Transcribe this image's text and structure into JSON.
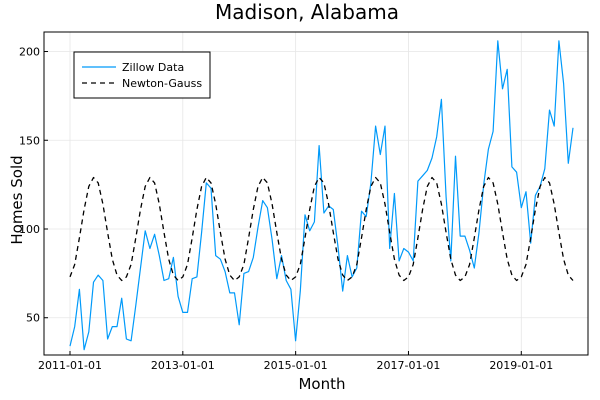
{
  "chart_data": {
    "type": "line",
    "title": "Madison, Alabama",
    "xlabel": "Month",
    "ylabel": "Homes Sold",
    "x_ticks": [
      "2011-01-01",
      "2013-01-01",
      "2015-01-01",
      "2017-01-01",
      "2019-01-01"
    ],
    "y_ticks": [
      50,
      100,
      150,
      200
    ],
    "xlim": [
      "2011-01-01",
      "2019-12-01"
    ],
    "ylim": [
      29,
      211
    ],
    "grid": true,
    "legend_position": "top-left",
    "colors": {
      "Zillow Data": "#009AFA",
      "Newton-Gauss": "#000000"
    },
    "series": [
      {
        "name": "Zillow Data",
        "style": "solid",
        "x": [
          "2011-01-01",
          "2011-02-01",
          "2011-03-01",
          "2011-04-01",
          "2011-05-01",
          "2011-06-01",
          "2011-07-01",
          "2011-08-01",
          "2011-09-01",
          "2011-10-01",
          "2011-11-01",
          "2011-12-01",
          "2012-01-01",
          "2012-02-01",
          "2012-03-01",
          "2012-04-01",
          "2012-05-01",
          "2012-06-01",
          "2012-07-01",
          "2012-08-01",
          "2012-09-01",
          "2012-10-01",
          "2012-11-01",
          "2012-12-01",
          "2013-01-01",
          "2013-02-01",
          "2013-03-01",
          "2013-04-01",
          "2013-05-01",
          "2013-06-01",
          "2013-07-01",
          "2013-08-01",
          "2013-09-01",
          "2013-10-01",
          "2013-11-01",
          "2013-12-01",
          "2014-01-01",
          "2014-02-01",
          "2014-03-01",
          "2014-04-01",
          "2014-05-01",
          "2014-06-01",
          "2014-07-01",
          "2014-08-01",
          "2014-09-01",
          "2014-10-01",
          "2014-11-01",
          "2014-12-01",
          "2015-01-01",
          "2015-02-01",
          "2015-03-01",
          "2015-04-01",
          "2015-05-01",
          "2015-06-01",
          "2015-07-01",
          "2015-08-01",
          "2015-09-01",
          "2015-10-01",
          "2015-11-01",
          "2015-12-01",
          "2016-01-01",
          "2016-02-01",
          "2016-03-01",
          "2016-04-01",
          "2016-05-01",
          "2016-06-01",
          "2016-07-01",
          "2016-08-01",
          "2016-09-01",
          "2016-10-01",
          "2016-11-01",
          "2016-12-01",
          "2017-01-01",
          "2017-02-01",
          "2017-03-01",
          "2017-04-01",
          "2017-05-01",
          "2017-06-01",
          "2017-07-01",
          "2017-08-01",
          "2017-09-01",
          "2017-10-01",
          "2017-11-01",
          "2017-12-01",
          "2018-01-01",
          "2018-02-01",
          "2018-03-01",
          "2018-04-01",
          "2018-05-01",
          "2018-06-01",
          "2018-07-01",
          "2018-08-01",
          "2018-09-01",
          "2018-10-01",
          "2018-11-01",
          "2018-12-01",
          "2019-01-01",
          "2019-02-01",
          "2019-03-01",
          "2019-04-01",
          "2019-05-01",
          "2019-06-01",
          "2019-07-01",
          "2019-08-01",
          "2019-09-01",
          "2019-10-01",
          "2019-11-01",
          "2019-12-01"
        ],
        "y": [
          34,
          45,
          66,
          32,
          42,
          70,
          74,
          71,
          38,
          45,
          45,
          61,
          38,
          37,
          57,
          78,
          99,
          89,
          97,
          85,
          71,
          72,
          84,
          62,
          53,
          53,
          72,
          73,
          98,
          126,
          123,
          85,
          83,
          76,
          64,
          64,
          46,
          75,
          76,
          84,
          101,
          116,
          112,
          94,
          72,
          85,
          71,
          66,
          37,
          65,
          108,
          99,
          104,
          147,
          109,
          113,
          111,
          90,
          65,
          85,
          73,
          78,
          110,
          107,
          126,
          158,
          142,
          158,
          89,
          120,
          82,
          89,
          87,
          82,
          127,
          130,
          133,
          140,
          152,
          173,
          118,
          82,
          141,
          96,
          96,
          88,
          78,
          98,
          125,
          145,
          155,
          206,
          179,
          190,
          135,
          132,
          112,
          121,
          92,
          119,
          124,
          134,
          167,
          158,
          206,
          182,
          137,
          157
        ]
      },
      {
        "name": "Newton-Gauss",
        "style": "dashed",
        "x": [
          "2011-01-01",
          "2011-02-01",
          "2011-03-01",
          "2011-04-01",
          "2011-05-01",
          "2011-06-01",
          "2011-07-01",
          "2011-08-01",
          "2011-09-01",
          "2011-10-01",
          "2011-11-01",
          "2011-12-01",
          "2012-01-01",
          "2012-02-01",
          "2012-03-01",
          "2012-04-01",
          "2012-05-01",
          "2012-06-01",
          "2012-07-01",
          "2012-08-01",
          "2012-09-01",
          "2012-10-01",
          "2012-11-01",
          "2012-12-01",
          "2013-01-01",
          "2013-02-01",
          "2013-03-01",
          "2013-04-01",
          "2013-05-01",
          "2013-06-01",
          "2013-07-01",
          "2013-08-01",
          "2013-09-01",
          "2013-10-01",
          "2013-11-01",
          "2013-12-01",
          "2014-01-01",
          "2014-02-01",
          "2014-03-01",
          "2014-04-01",
          "2014-05-01",
          "2014-06-01",
          "2014-07-01",
          "2014-08-01",
          "2014-09-01",
          "2014-10-01",
          "2014-11-01",
          "2014-12-01",
          "2015-01-01",
          "2015-02-01",
          "2015-03-01",
          "2015-04-01",
          "2015-05-01",
          "2015-06-01",
          "2015-07-01",
          "2015-08-01",
          "2015-09-01",
          "2015-10-01",
          "2015-11-01",
          "2015-12-01",
          "2016-01-01",
          "2016-02-01",
          "2016-03-01",
          "2016-04-01",
          "2016-05-01",
          "2016-06-01",
          "2016-07-01",
          "2016-08-01",
          "2016-09-01",
          "2016-10-01",
          "2016-11-01",
          "2016-12-01",
          "2017-01-01",
          "2017-02-01",
          "2017-03-01",
          "2017-04-01",
          "2017-05-01",
          "2017-06-01",
          "2017-07-01",
          "2017-08-01",
          "2017-09-01",
          "2017-10-01",
          "2017-11-01",
          "2017-12-01",
          "2018-01-01",
          "2018-02-01",
          "2018-03-01",
          "2018-04-01",
          "2018-05-01",
          "2018-06-01",
          "2018-07-01",
          "2018-08-01",
          "2018-09-01",
          "2018-10-01",
          "2018-11-01",
          "2018-12-01",
          "2019-01-01",
          "2019-02-01",
          "2019-03-01",
          "2019-04-01",
          "2019-05-01",
          "2019-06-01",
          "2019-07-01",
          "2019-08-01",
          "2019-09-01",
          "2019-10-01",
          "2019-11-01",
          "2019-12-01"
        ],
        "y": [
          73,
          80,
          95,
          111,
          124,
          129,
          126,
          114,
          98,
          83,
          74,
          71,
          73,
          80,
          95,
          111,
          124,
          129,
          126,
          114,
          98,
          83,
          74,
          71,
          73,
          80,
          95,
          111,
          124,
          129,
          126,
          114,
          98,
          83,
          74,
          71,
          73,
          80,
          95,
          111,
          124,
          129,
          126,
          114,
          98,
          83,
          74,
          71,
          73,
          80,
          95,
          111,
          124,
          129,
          126,
          114,
          98,
          83,
          74,
          71,
          73,
          80,
          95,
          111,
          124,
          129,
          126,
          114,
          98,
          83,
          74,
          71,
          73,
          80,
          95,
          111,
          124,
          129,
          126,
          114,
          98,
          83,
          74,
          71,
          73,
          80,
          95,
          111,
          124,
          129,
          126,
          114,
          98,
          83,
          74,
          71,
          73,
          80,
          95,
          111,
          124,
          129,
          126,
          114,
          98,
          83,
          74,
          71
        ]
      }
    ]
  }
}
